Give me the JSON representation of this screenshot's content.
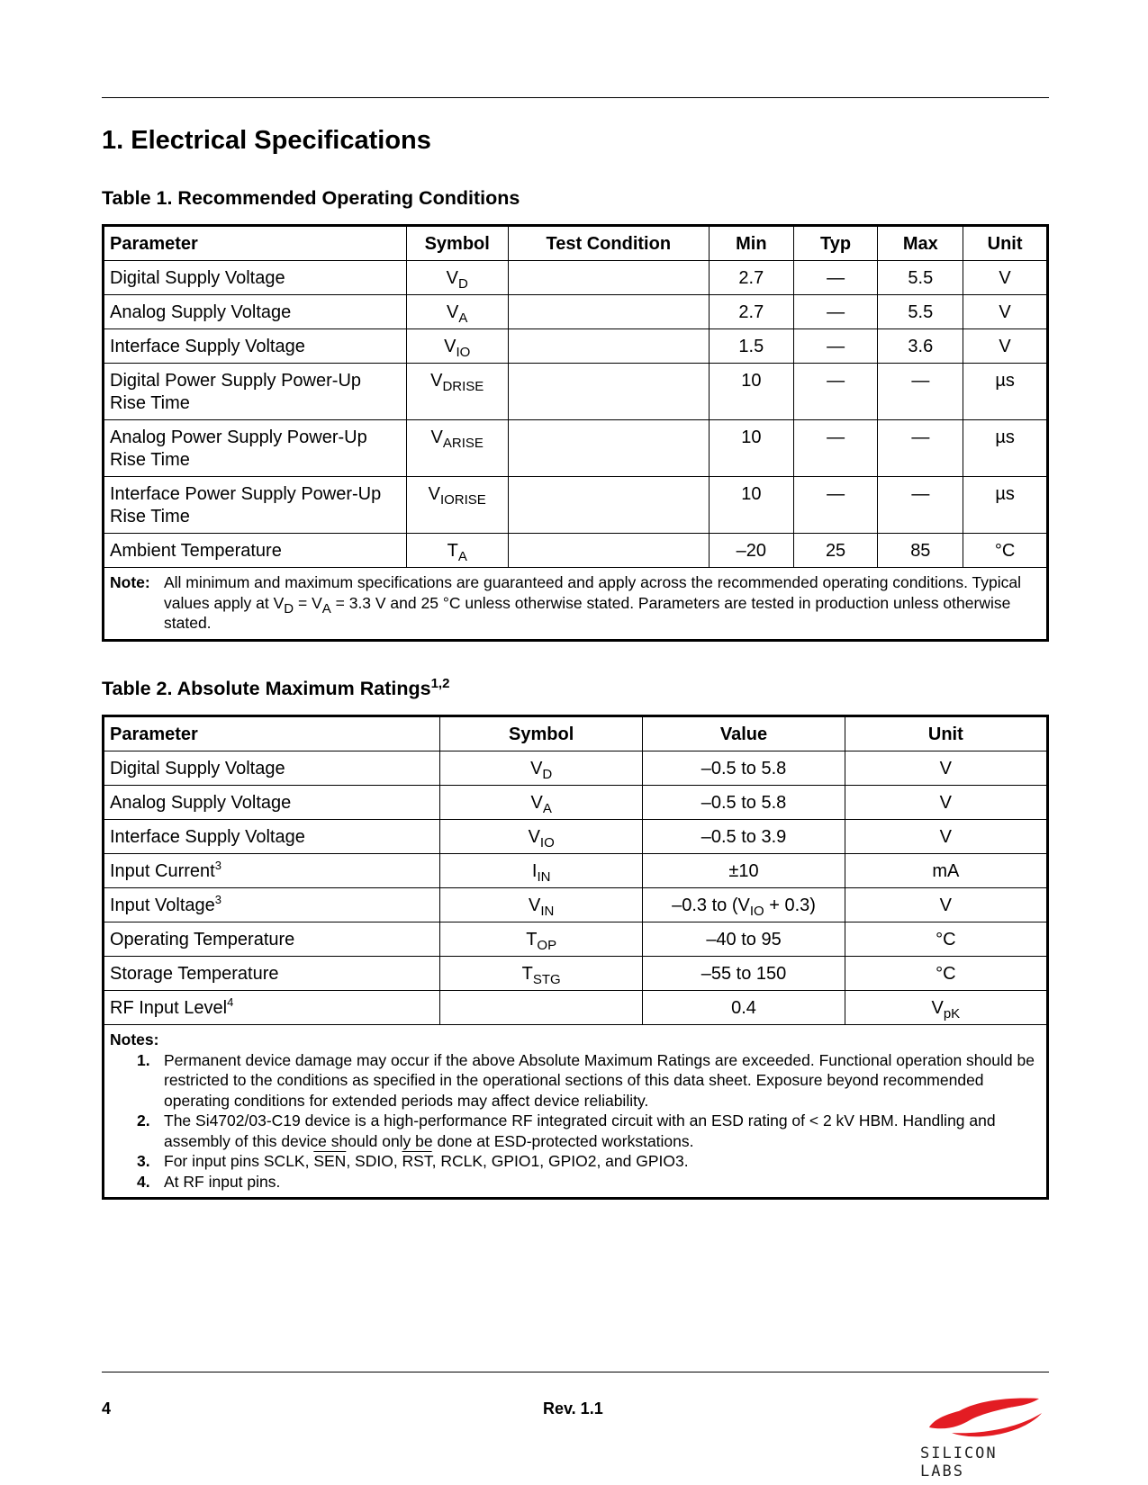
{
  "section_title": "1.  Electrical Specifications",
  "table1": {
    "title": "Table 1. Recommended Operating Conditions",
    "headers": [
      "Parameter",
      "Symbol",
      "Test Condition",
      "Min",
      "Typ",
      "Max",
      "Unit"
    ],
    "rows": [
      {
        "param": "Digital Supply Voltage",
        "sym": "V",
        "sub": "D",
        "cond": "",
        "min": "2.7",
        "typ": "—",
        "max": "5.5",
        "unit": "V"
      },
      {
        "param": "Analog Supply Voltage",
        "sym": "V",
        "sub": "A",
        "cond": "",
        "min": "2.7",
        "typ": "—",
        "max": "5.5",
        "unit": "V"
      },
      {
        "param": "Interface Supply Voltage",
        "sym": "V",
        "sub": "IO",
        "cond": "",
        "min": "1.5",
        "typ": "—",
        "max": "3.6",
        "unit": "V"
      },
      {
        "param": "Digital Power Supply Power-Up Rise Time",
        "sym": "V",
        "sub": "DRISE",
        "cond": "",
        "min": "10",
        "typ": "—",
        "max": "—",
        "unit": "µs"
      },
      {
        "param": "Analog Power Supply Power-Up Rise Time",
        "sym": "V",
        "sub": "ARISE",
        "cond": "",
        "min": "10",
        "typ": "—",
        "max": "—",
        "unit": "µs"
      },
      {
        "param": "Interface Power Supply Power-Up Rise Time",
        "sym": "V",
        "sub": "IORISE",
        "cond": "",
        "min": "10",
        "typ": "—",
        "max": "—",
        "unit": "µs"
      },
      {
        "param": "Ambient Temperature",
        "sym": "T",
        "sub": "A",
        "cond": "",
        "min": "–20",
        "typ": "25",
        "max": "85",
        "unit": "°C"
      }
    ],
    "note_label": "Note:",
    "note_a": "All minimum and maximum specifications are guaranteed and apply across the recommended operating conditions. Typical values apply at V",
    "note_sub1": "D",
    "note_b": " = V",
    "note_sub2": "A",
    "note_c": " = 3.3 V and 25 °C unless otherwise stated. Parameters are tested in production unless otherwise stated."
  },
  "table2": {
    "title": "Table 2. Absolute Maximum Ratings",
    "title_sup": "1,2",
    "headers": [
      "Parameter",
      "Symbol",
      "Value",
      "Unit"
    ],
    "rows": [
      {
        "param": "Digital Supply Voltage",
        "psup": "",
        "sym": "V",
        "sub": "D",
        "value": "–0.5 to 5.8",
        "unit": "V",
        "usub": ""
      },
      {
        "param": "Analog Supply Voltage",
        "psup": "",
        "sym": "V",
        "sub": "A",
        "value": "–0.5 to 5.8",
        "unit": "V",
        "usub": ""
      },
      {
        "param": "Interface Supply Voltage",
        "psup": "",
        "sym": "V",
        "sub": "IO",
        "value": "–0.5 to 3.9",
        "unit": "V",
        "usub": ""
      },
      {
        "param": "Input Current",
        "psup": "3",
        "sym": "I",
        "sub": "IN",
        "value": "±10",
        "unit": "mA",
        "usub": ""
      },
      {
        "param": "Input Voltage",
        "psup": "3",
        "sym": "V",
        "sub": "IN",
        "value": "–0.3 to (V<sub>IO</sub> + 0.3)",
        "unit": "V",
        "usub": ""
      },
      {
        "param": "Operating Temperature",
        "psup": "",
        "sym": "T",
        "sub": "OP",
        "value": "–40 to 95",
        "unit": "°C",
        "usub": ""
      },
      {
        "param": "Storage Temperature",
        "psup": "",
        "sym": "T",
        "sub": "STG",
        "value": "–55 to 150",
        "unit": "°C",
        "usub": ""
      },
      {
        "param": "RF Input Level",
        "psup": "4",
        "sym": "",
        "sub": "",
        "value": "0.4",
        "unit": "V",
        "usub": "pK"
      }
    ],
    "notes_label": "Notes:",
    "notes": [
      {
        "n": "1.",
        "text": "Permanent device damage may occur if the above Absolute Maximum Ratings are exceeded. Functional operation should be restricted to the conditions as specified in the operational sections of this data sheet. Exposure beyond recommended operating conditions for extended periods may affect device reliability."
      },
      {
        "n": "2.",
        "text": "The Si4702/03-C19 device is a high-performance RF integrated circuit with an ESD rating of < 2  kV HBM. Handling and assembly of this device should only be done at ESD-protected workstations."
      },
      {
        "n": "3.",
        "text": "For input pins SCLK, <span class='ov'>SEN</span>, SDIO, <span class='ov'>RST</span>, RCLK, GPIO1, GPIO2, and GPIO3."
      },
      {
        "n": "4.",
        "text": "At RF input pins."
      }
    ]
  },
  "footer": {
    "page": "4",
    "rev": "Rev. 1.1",
    "logo_text": "SILICON LABS",
    "logo_color": "#e31c23"
  }
}
